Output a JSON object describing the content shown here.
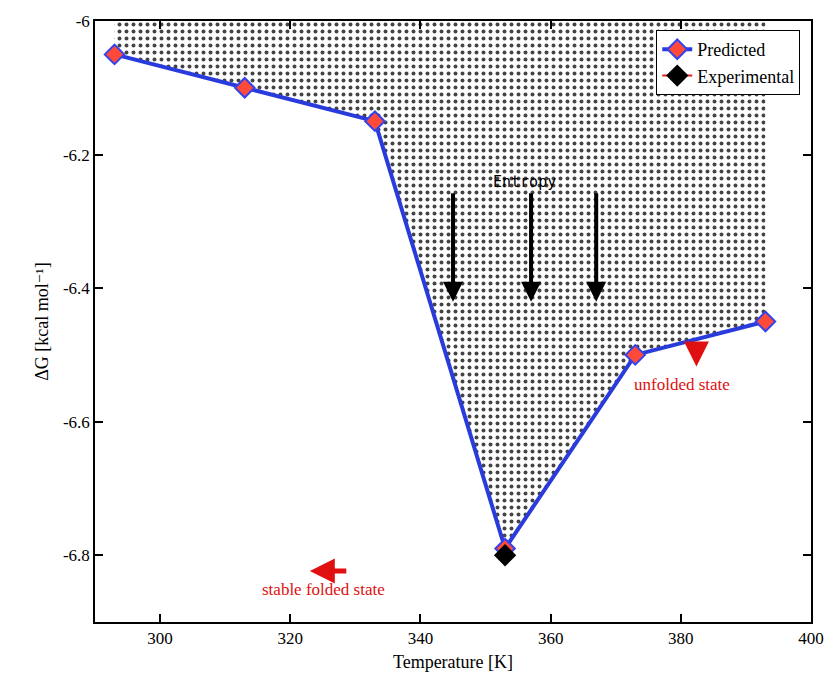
{
  "chart_data": {
    "type": "line",
    "x_label": "Temperature [K]",
    "y_label": "ΔG [kcal mol⁻¹]",
    "series": [
      {
        "name": "Predicted",
        "color": "#2a3bdc",
        "marker": "diamond",
        "line_style": "solid",
        "x": [
          293,
          313,
          333,
          353,
          373,
          393
        ],
        "values": [
          -6.05,
          -6.1,
          -6.15,
          -6.79,
          -6.5,
          -6.45
        ]
      },
      {
        "name": "Experimental",
        "color": "#000000",
        "marker": "diamond",
        "line_style": "solid",
        "x": [
          353
        ],
        "values": [
          -6.8
        ]
      }
    ],
    "xlim": [
      290,
      400
    ],
    "xticks": [
      300,
      320,
      340,
      360,
      380,
      400
    ],
    "ylim": [
      -6.9,
      -6.0
    ],
    "yticks": [
      -6.8,
      -6.6,
      -6.4,
      -6.2,
      -6
    ],
    "annotations": [
      "Entropy",
      "stable folded state",
      "unfolded state"
    ],
    "legend": "top right",
    "grid": false
  }
}
